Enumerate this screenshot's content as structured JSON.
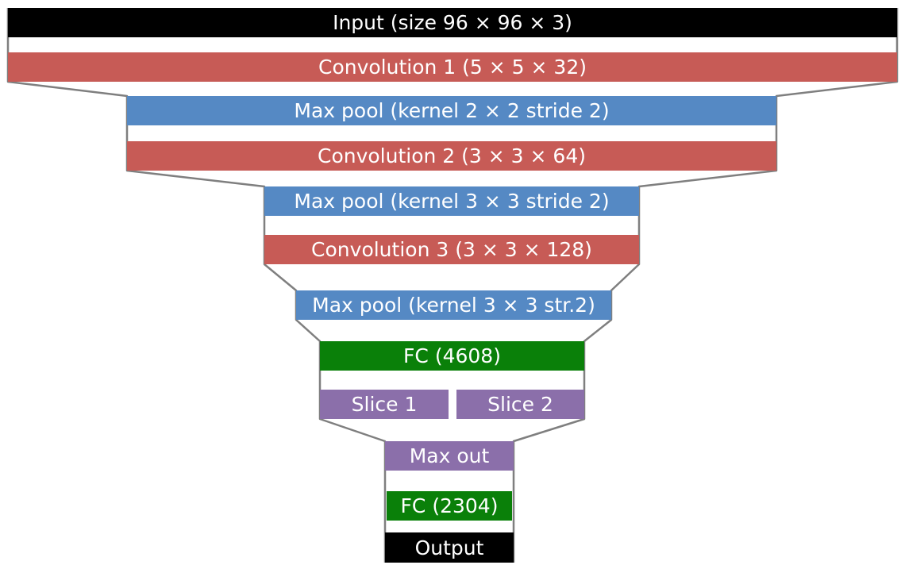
{
  "layers": {
    "input": "Input (size 96 × 96 × 3)",
    "conv1": "Convolution 1 (5 × 5 ×  32)",
    "maxpool1": "Max pool (kernel 2 × 2 stride 2)",
    "conv2": "Convolution 2 (3 × 3 × 64)",
    "maxpool2": "Max pool (kernel 3 × 3 stride 2)",
    "conv3": "Convolution 3 (3 × 3 × 128)",
    "maxpool3": "Max pool (kernel 3 × 3 str.2)",
    "fc1": "FC (4608)",
    "slice1": "Slice 1",
    "slice2": "Slice 2",
    "maxout": "Max out",
    "fc2": "FC (2304)",
    "output": "Output"
  },
  "colors": {
    "input_output": "#000000",
    "convolution": "#c75b56",
    "max_pool": "#5589c4",
    "fully_connected": "#0a8009",
    "slice_maxout": "#8b6faa",
    "outline": "#7f7f7f"
  }
}
